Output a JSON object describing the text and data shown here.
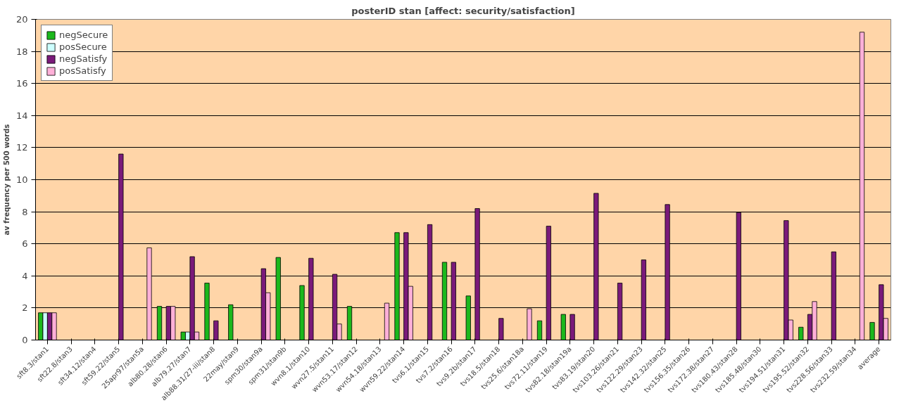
{
  "chart_data": {
    "type": "bar",
    "title": "posterID stan [affect: security/satisfaction]",
    "ylabel": "av frequency per 500 words",
    "categories": [
      "sft8.3/stan1",
      "sft22.8/stan3",
      "sft34.12/stan4",
      "sft59.22/stan5",
      "25apr97/stan5a",
      "alb80.28/stan6",
      "alb79.27/stan7",
      "alb88.31/27-iii/stan8",
      "22may/stan9",
      "spm30/stan9a",
      "spm31/stan9b",
      "wvn8.1/stan10",
      "wvn27.5/stan11",
      "wvn53.17/stan12",
      "wvn54.18/stan13",
      "wvn59.22/stan14",
      "tvs6.1/stan15",
      "tvs7.2/stan16",
      "tvs9.2b/stan17",
      "tvs18.5/stan18",
      "tvs25.6/stan18a",
      "tvs72.11/stan19",
      "tvs82.18/stan19a",
      "tvs83.19/stan20",
      "tvs103.26/stan21",
      "tvs122.29/stan23",
      "tvs142.32/stan25",
      "tvs156.35/stan26",
      "tvs172.38/stan27",
      "tvs180.43/stan28",
      "tvs185.48/stan30",
      "tvs194.51/stan31",
      "tvs195.52/stan32",
      "tvs228.56/stan33",
      "tvs232.59/stan34",
      "average"
    ],
    "series": [
      {
        "name": "negSecure",
        "color": "#1cb81c",
        "values": [
          1.7,
          0,
          0,
          0,
          0,
          2.1,
          0.5,
          3.55,
          2.2,
          0,
          5.15,
          3.4,
          0,
          2.1,
          0,
          6.7,
          0,
          4.85,
          2.75,
          0,
          0,
          1.2,
          1.6,
          0,
          0,
          0,
          0,
          0,
          0,
          0,
          0,
          0,
          0.8,
          0,
          0,
          1.1
        ]
      },
      {
        "name": "posSecure",
        "color": "#ccffff",
        "values": [
          1.7,
          0,
          0,
          0,
          0,
          0,
          0.5,
          0,
          0,
          0,
          0,
          0,
          0,
          0,
          0,
          0,
          0,
          0,
          0,
          0,
          0,
          0,
          0,
          0,
          0,
          0,
          0,
          0,
          0,
          0,
          0,
          0,
          0,
          0,
          0,
          null
        ]
      },
      {
        "name": "negSatisfy",
        "color": "#7a1a7a",
        "values": [
          1.7,
          0,
          0,
          11.6,
          0,
          2.1,
          5.2,
          1.2,
          0,
          4.45,
          0,
          5.1,
          4.1,
          0,
          0,
          6.7,
          7.2,
          4.85,
          8.2,
          1.35,
          0,
          7.1,
          1.6,
          9.15,
          3.55,
          5.0,
          8.45,
          0,
          0,
          7.95,
          0,
          7.45,
          1.6,
          5.5,
          0,
          3.45
        ]
      },
      {
        "name": "posSatisfy",
        "color": "#ffb0d8",
        "values": [
          1.7,
          0,
          0,
          0,
          5.75,
          2.1,
          0.5,
          0,
          0,
          2.95,
          0,
          0,
          1.0,
          0,
          2.3,
          3.35,
          0,
          0,
          0,
          0,
          1.95,
          0,
          0,
          0,
          0,
          0,
          0,
          0,
          0,
          0,
          0,
          1.25,
          2.4,
          0,
          19.2,
          1.35
        ]
      }
    ],
    "ylim": [
      0,
      20
    ],
    "yticks": [
      0,
      2,
      4,
      6,
      8,
      10,
      12,
      14,
      16,
      18,
      20
    ],
    "grid": "y",
    "legend": "top left"
  }
}
